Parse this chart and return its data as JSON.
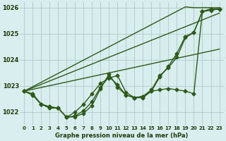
{
  "title": "Graphe pression niveau de la mer (hPa)",
  "x_labels": [
    "0",
    "1",
    "2",
    "3",
    "4",
    "5",
    "6",
    "7",
    "8",
    "9",
    "10",
    "11",
    "12",
    "13",
    "14",
    "15",
    "16",
    "17",
    "18",
    "19",
    "20",
    "21",
    "22",
    "23"
  ],
  "x_values": [
    0,
    1,
    2,
    3,
    4,
    5,
    6,
    7,
    8,
    9,
    10,
    11,
    12,
    13,
    14,
    15,
    16,
    17,
    18,
    19,
    20,
    21,
    22,
    23
  ],
  "ylim": [
    1021.5,
    1026.2
  ],
  "yticks": [
    1022,
    1023,
    1024,
    1025,
    1026
  ],
  "line_curved1": [
    1022.8,
    1022.7,
    1022.3,
    1022.2,
    1022.15,
    1021.8,
    1021.82,
    1021.95,
    1022.25,
    1022.9,
    1023.45,
    1022.95,
    1022.65,
    1022.55,
    1022.55,
    1022.8,
    1022.85,
    1022.9,
    1022.85,
    1022.8,
    1022.7,
    1025.85,
    1025.9,
    1025.95
  ],
  "line_curved2": [
    1022.8,
    1022.65,
    1022.3,
    1022.15,
    1022.15,
    1021.8,
    1021.85,
    1022.05,
    1022.4,
    1022.95,
    1023.35,
    1023.05,
    1022.65,
    1022.55,
    1022.6,
    1022.85,
    1023.4,
    1023.7,
    1024.1,
    1024.85,
    1025.05,
    1025.85,
    1025.95,
    1025.95
  ],
  "line_curved3": [
    1022.8,
    1022.65,
    1022.3,
    1022.2,
    1022.15,
    1021.8,
    1022.0,
    1022.3,
    1022.7,
    1023.1,
    1023.3,
    1023.4,
    1022.75,
    1022.55,
    1022.6,
    1022.8,
    1023.35,
    1023.75,
    1024.25,
    1024.9,
    1025.05,
    1025.85,
    1025.95,
    1025.95
  ],
  "line_straight1": [
    1022.8,
    1022.97,
    1023.14,
    1023.31,
    1023.48,
    1023.65,
    1023.82,
    1023.99,
    1024.16,
    1024.33,
    1024.5,
    1024.67,
    1024.84,
    1025.01,
    1025.18,
    1025.35,
    1025.52,
    1025.69,
    1025.86,
    1026.03,
    1026.0,
    1026.0,
    1026.0,
    1026.0
  ],
  "line_straight2": [
    1022.8,
    1022.93,
    1023.06,
    1023.19,
    1023.32,
    1023.45,
    1023.58,
    1023.71,
    1023.84,
    1023.97,
    1024.1,
    1024.23,
    1024.36,
    1024.49,
    1024.62,
    1024.75,
    1024.88,
    1025.01,
    1025.14,
    1025.27,
    1025.4,
    1025.53,
    1025.66,
    1025.79
  ],
  "line_straight3": [
    1022.8,
    1022.87,
    1022.94,
    1023.01,
    1023.08,
    1023.15,
    1023.22,
    1023.29,
    1023.36,
    1023.43,
    1023.5,
    1023.57,
    1023.64,
    1023.71,
    1023.78,
    1023.85,
    1023.92,
    1023.99,
    1024.06,
    1024.13,
    1024.2,
    1024.27,
    1024.34,
    1024.41
  ],
  "bg_color": "#d8eeee",
  "line_color": "#2d5a1b",
  "grid_color": "#b0c8c8",
  "title_color": "#1a3a0a",
  "tick_label_color": "#1a3a0a",
  "marker": "D",
  "marker_size": 2.5,
  "line_width": 1.0
}
